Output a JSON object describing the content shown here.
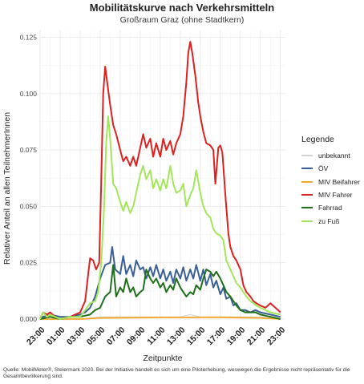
{
  "header": {
    "title": "Mobilitätskurve nach Verkehrsmitteln",
    "subtitle": "Großraum Graz (ohne Stadtkern)"
  },
  "legend": {
    "title": "Legende",
    "items": [
      {
        "label": "unbekannt",
        "color": "#d3d3d3"
      },
      {
        "label": "ÖV",
        "color": "#3a5f95"
      },
      {
        "label": "MIV Beifahrer",
        "color": "#f5a623"
      },
      {
        "label": "MIV Fahrer",
        "color": "#dd2020"
      },
      {
        "label": "Fahrrad",
        "color": "#1f6e1a"
      },
      {
        "label": "zu Fuß",
        "color": "#a4e65a"
      }
    ]
  },
  "source": "Quelle: MobilMeter®, Steiermark 2020. Bei der Initiative handelt es sich um eine Piloterhebung, weswegen die Ergebnisse nicht repräsentativ für die Gesamtbevölkerung sind.",
  "chart_data": {
    "type": "line",
    "title": "Mobilitätskurve nach Verkehrsmitteln",
    "subtitle": "Großraum Graz (ohne Stadtkern)",
    "xlabel": "Zeitpunkte",
    "ylabel": "Relativer Anteil an allen TeilnehmerInnen",
    "x_unit": "hours since 23:00",
    "xlim": [
      0,
      24.5
    ],
    "ylim": [
      0,
      0.128
    ],
    "x_ticks": [
      0,
      2,
      4,
      6,
      8,
      10,
      12,
      14,
      16,
      18,
      20,
      22,
      24
    ],
    "x_tick_labels": [
      "23:00",
      "01:00",
      "03:00",
      "05:00",
      "07:00",
      "09:00",
      "11:00",
      "13:00",
      "15:00",
      "17:00",
      "19:00",
      "21:00",
      "23:00"
    ],
    "y_ticks": [
      0.0,
      0.025,
      0.05,
      0.075,
      0.1,
      0.125
    ],
    "y_tick_labels": [
      "0.000",
      "0.025",
      "0.050",
      "0.075",
      "0.100",
      "0.125"
    ],
    "grid": true,
    "legend_position": "right",
    "series": [
      {
        "name": "unbekannt",
        "color": "#d3d3d3",
        "points": [
          [
            0,
            0
          ],
          [
            4,
            0
          ],
          [
            6,
            0.001
          ],
          [
            10,
            0.001
          ],
          [
            14,
            0.001
          ],
          [
            15,
            0.002
          ],
          [
            16,
            0.001
          ],
          [
            20,
            0.001
          ],
          [
            22,
            0.001
          ],
          [
            24,
            0
          ]
        ]
      },
      {
        "name": "ÖV",
        "color": "#3a5f95",
        "points": [
          [
            0,
            0
          ],
          [
            0.3,
            0.001
          ],
          [
            1,
            0.002
          ],
          [
            2,
            0.001
          ],
          [
            3,
            0.001
          ],
          [
            4,
            0.002
          ],
          [
            4.5,
            0.003
          ],
          [
            5,
            0.005
          ],
          [
            5.5,
            0.01
          ],
          [
            6,
            0.018
          ],
          [
            6.5,
            0.024
          ],
          [
            7,
            0.025
          ],
          [
            7.2,
            0.032
          ],
          [
            7.5,
            0.022
          ],
          [
            8,
            0.02
          ],
          [
            8.3,
            0.028
          ],
          [
            8.6,
            0.02
          ],
          [
            9,
            0.024
          ],
          [
            9.3,
            0.019
          ],
          [
            9.6,
            0.026
          ],
          [
            10,
            0.022
          ],
          [
            10.3,
            0.023
          ],
          [
            10.6,
            0.018
          ],
          [
            11,
            0.023
          ],
          [
            11.3,
            0.019
          ],
          [
            11.6,
            0.024
          ],
          [
            12,
            0.018
          ],
          [
            12.3,
            0.022
          ],
          [
            12.6,
            0.017
          ],
          [
            13,
            0.021
          ],
          [
            13.3,
            0.016
          ],
          [
            13.6,
            0.022
          ],
          [
            14,
            0.018
          ],
          [
            14.3,
            0.023
          ],
          [
            14.6,
            0.017
          ],
          [
            15,
            0.022
          ],
          [
            15.3,
            0.018
          ],
          [
            15.6,
            0.024
          ],
          [
            16,
            0.017
          ],
          [
            16.3,
            0.022
          ],
          [
            16.6,
            0.015
          ],
          [
            17,
            0.02
          ],
          [
            17.3,
            0.014
          ],
          [
            17.6,
            0.017
          ],
          [
            18,
            0.011
          ],
          [
            18.3,
            0.014
          ],
          [
            18.6,
            0.009
          ],
          [
            19,
            0.01
          ],
          [
            19.3,
            0.006
          ],
          [
            19.6,
            0.007
          ],
          [
            20,
            0.004
          ],
          [
            20.5,
            0.004
          ],
          [
            21,
            0.003
          ],
          [
            21.5,
            0.004
          ],
          [
            22,
            0.003
          ],
          [
            23,
            0.002
          ],
          [
            24,
            0.001
          ]
        ]
      },
      {
        "name": "MIV Beifahrer",
        "color": "#f5a623",
        "points": [
          [
            0,
            0.0
          ],
          [
            4,
            0.0
          ],
          [
            6,
            0.0005
          ],
          [
            12,
            0.0007
          ],
          [
            18,
            0.0008
          ],
          [
            22,
            0.0005
          ],
          [
            24,
            0.0
          ]
        ]
      },
      {
        "name": "MIV Fahrer",
        "color": "#dd2020",
        "points": [
          [
            0,
            0
          ],
          [
            0.3,
            0.003
          ],
          [
            0.7,
            0.002
          ],
          [
            1,
            0.003
          ],
          [
            1.5,
            0.001
          ],
          [
            2,
            0.0
          ],
          [
            3,
            0.001
          ],
          [
            3.5,
            0.002
          ],
          [
            4,
            0.003
          ],
          [
            4.5,
            0.008
          ],
          [
            4.8,
            0.02
          ],
          [
            5.0,
            0.027
          ],
          [
            5.3,
            0.026
          ],
          [
            5.6,
            0.022
          ],
          [
            5.9,
            0.025
          ],
          [
            6.1,
            0.06
          ],
          [
            6.3,
            0.1
          ],
          [
            6.5,
            0.112
          ],
          [
            6.7,
            0.105
          ],
          [
            7.0,
            0.095
          ],
          [
            7.3,
            0.086
          ],
          [
            7.6,
            0.082
          ],
          [
            8.0,
            0.075
          ],
          [
            8.3,
            0.07
          ],
          [
            8.6,
            0.072
          ],
          [
            9.0,
            0.068
          ],
          [
            9.3,
            0.072
          ],
          [
            9.6,
            0.068
          ],
          [
            10.0,
            0.076
          ],
          [
            10.3,
            0.082
          ],
          [
            10.6,
            0.076
          ],
          [
            11.0,
            0.08
          ],
          [
            11.3,
            0.072
          ],
          [
            11.6,
            0.078
          ],
          [
            12.0,
            0.072
          ],
          [
            12.3,
            0.08
          ],
          [
            12.6,
            0.075
          ],
          [
            13.0,
            0.079
          ],
          [
            13.3,
            0.073
          ],
          [
            13.6,
            0.078
          ],
          [
            14.0,
            0.082
          ],
          [
            14.3,
            0.09
          ],
          [
            14.6,
            0.105
          ],
          [
            14.8,
            0.118
          ],
          [
            15.0,
            0.123
          ],
          [
            15.2,
            0.118
          ],
          [
            15.5,
            0.108
          ],
          [
            15.8,
            0.096
          ],
          [
            16.0,
            0.09
          ],
          [
            16.3,
            0.083
          ],
          [
            16.6,
            0.078
          ],
          [
            17.0,
            0.077
          ],
          [
            17.3,
            0.075
          ],
          [
            17.5,
            0.06
          ],
          [
            17.8,
            0.076
          ],
          [
            18.0,
            0.077
          ],
          [
            18.2,
            0.074
          ],
          [
            18.5,
            0.055
          ],
          [
            18.8,
            0.038
          ],
          [
            19.0,
            0.032
          ],
          [
            19.3,
            0.028
          ],
          [
            19.6,
            0.026
          ],
          [
            20.0,
            0.022
          ],
          [
            20.3,
            0.015
          ],
          [
            20.6,
            0.012
          ],
          [
            21.0,
            0.01
          ],
          [
            21.3,
            0.008
          ],
          [
            21.6,
            0.007
          ],
          [
            22.0,
            0.006
          ],
          [
            22.5,
            0.005
          ],
          [
            23.0,
            0.007
          ],
          [
            23.5,
            0.005
          ],
          [
            24.0,
            0.003
          ]
        ]
      },
      {
        "name": "Fahrrad",
        "color": "#1f6e1a",
        "points": [
          [
            0,
            0
          ],
          [
            1,
            0.001
          ],
          [
            2,
            0.0
          ],
          [
            3,
            0.001
          ],
          [
            4,
            0.001
          ],
          [
            5,
            0.002
          ],
          [
            5.5,
            0.004
          ],
          [
            6,
            0.005
          ],
          [
            6.5,
            0.01
          ],
          [
            7,
            0.012
          ],
          [
            7.3,
            0.024
          ],
          [
            7.6,
            0.01
          ],
          [
            8,
            0.014
          ],
          [
            8.3,
            0.012
          ],
          [
            8.6,
            0.018
          ],
          [
            9,
            0.012
          ],
          [
            9.3,
            0.014
          ],
          [
            9.6,
            0.01
          ],
          [
            10,
            0.012
          ],
          [
            10.3,
            0.013
          ],
          [
            10.6,
            0.022
          ],
          [
            11,
            0.018
          ],
          [
            11.3,
            0.016
          ],
          [
            11.6,
            0.018
          ],
          [
            12,
            0.014
          ],
          [
            12.3,
            0.016
          ],
          [
            12.6,
            0.012
          ],
          [
            13,
            0.015
          ],
          [
            13.3,
            0.013
          ],
          [
            13.6,
            0.018
          ],
          [
            14,
            0.014
          ],
          [
            14.3,
            0.012
          ],
          [
            14.6,
            0.01
          ],
          [
            15,
            0.012
          ],
          [
            15.3,
            0.011
          ],
          [
            15.6,
            0.015
          ],
          [
            16,
            0.013
          ],
          [
            16.3,
            0.018
          ],
          [
            16.6,
            0.022
          ],
          [
            17,
            0.021
          ],
          [
            17.3,
            0.019
          ],
          [
            17.6,
            0.021
          ],
          [
            18,
            0.018
          ],
          [
            18.3,
            0.015
          ],
          [
            18.6,
            0.012
          ],
          [
            19,
            0.01
          ],
          [
            19.3,
            0.008
          ],
          [
            19.6,
            0.006
          ],
          [
            20,
            0.004
          ],
          [
            20.5,
            0.003
          ],
          [
            21,
            0.003
          ],
          [
            21.5,
            0.003
          ],
          [
            22,
            0.002
          ],
          [
            23,
            0.001
          ],
          [
            24,
            0.0
          ]
        ]
      },
      {
        "name": "zu Fuß",
        "color": "#a4e65a",
        "points": [
          [
            0,
            0
          ],
          [
            0.3,
            0.003
          ],
          [
            0.7,
            0.001
          ],
          [
            1,
            0.002
          ],
          [
            2,
            0.0
          ],
          [
            3,
            0.001
          ],
          [
            4,
            0.001
          ],
          [
            4.5,
            0.004
          ],
          [
            5,
            0.007
          ],
          [
            5.5,
            0.008
          ],
          [
            5.8,
            0.012
          ],
          [
            6.1,
            0.025
          ],
          [
            6.4,
            0.05
          ],
          [
            6.6,
            0.078
          ],
          [
            6.8,
            0.09
          ],
          [
            7.0,
            0.08
          ],
          [
            7.3,
            0.06
          ],
          [
            7.6,
            0.058
          ],
          [
            8.0,
            0.052
          ],
          [
            8.3,
            0.048
          ],
          [
            8.6,
            0.052
          ],
          [
            9.0,
            0.047
          ],
          [
            9.3,
            0.05
          ],
          [
            9.6,
            0.056
          ],
          [
            10.0,
            0.064
          ],
          [
            10.3,
            0.068
          ],
          [
            10.6,
            0.062
          ],
          [
            11.0,
            0.066
          ],
          [
            11.3,
            0.058
          ],
          [
            11.6,
            0.062
          ],
          [
            12.0,
            0.057
          ],
          [
            12.3,
            0.062
          ],
          [
            12.6,
            0.058
          ],
          [
            13.0,
            0.068
          ],
          [
            13.3,
            0.06
          ],
          [
            13.6,
            0.056
          ],
          [
            14.0,
            0.057
          ],
          [
            14.3,
            0.06
          ],
          [
            14.6,
            0.05
          ],
          [
            15.0,
            0.055
          ],
          [
            15.3,
            0.058
          ],
          [
            15.6,
            0.066
          ],
          [
            16.0,
            0.056
          ],
          [
            16.3,
            0.05
          ],
          [
            16.6,
            0.047
          ],
          [
            17.0,
            0.045
          ],
          [
            17.3,
            0.04
          ],
          [
            17.6,
            0.038
          ],
          [
            18.0,
            0.037
          ],
          [
            18.3,
            0.035
          ],
          [
            18.6,
            0.026
          ],
          [
            19.0,
            0.022
          ],
          [
            19.3,
            0.019
          ],
          [
            19.6,
            0.016
          ],
          [
            20.0,
            0.014
          ],
          [
            20.3,
            0.012
          ],
          [
            20.6,
            0.01
          ],
          [
            21.0,
            0.008
          ],
          [
            21.3,
            0.007
          ],
          [
            21.6,
            0.006
          ],
          [
            22.0,
            0.005
          ],
          [
            22.5,
            0.004
          ],
          [
            23.0,
            0.003
          ],
          [
            24.0,
            0.002
          ]
        ]
      }
    ]
  }
}
